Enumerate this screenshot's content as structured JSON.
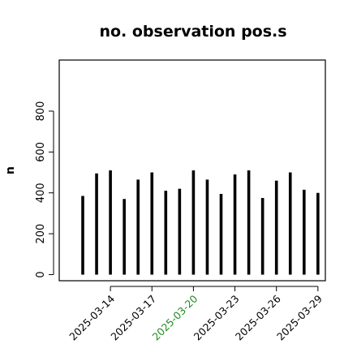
{
  "chart_data": {
    "type": "bar",
    "title": "no. observation pos.s",
    "xlabel": "",
    "ylabel": "n",
    "ylim": [
      -30,
      1050
    ],
    "yticks": [
      0,
      200,
      400,
      600,
      800
    ],
    "x": [
      "2025-03-12",
      "2025-03-13",
      "2025-03-14",
      "2025-03-15",
      "2025-03-16",
      "2025-03-17",
      "2025-03-18",
      "2025-03-19",
      "2025-03-20",
      "2025-03-21",
      "2025-03-22",
      "2025-03-23",
      "2025-03-24",
      "2025-03-25",
      "2025-03-26",
      "2025-03-27",
      "2025-03-28",
      "2025-03-29"
    ],
    "values": [
      385,
      495,
      510,
      370,
      465,
      500,
      410,
      420,
      510,
      465,
      395,
      490,
      510,
      375,
      460,
      500,
      415,
      400
    ],
    "xtick_labels": [
      {
        "label": "2025-03-14",
        "color": "#000000"
      },
      {
        "label": "2025-03-17",
        "color": "#000000"
      },
      {
        "label": "2025-03-20",
        "color": "#228B22"
      },
      {
        "label": "2025-03-23",
        "color": "#000000"
      },
      {
        "label": "2025-03-26",
        "color": "#000000"
      },
      {
        "label": "2025-03-29",
        "color": "#000000"
      }
    ],
    "bar_color": "#000000",
    "grid": false,
    "box": true
  }
}
